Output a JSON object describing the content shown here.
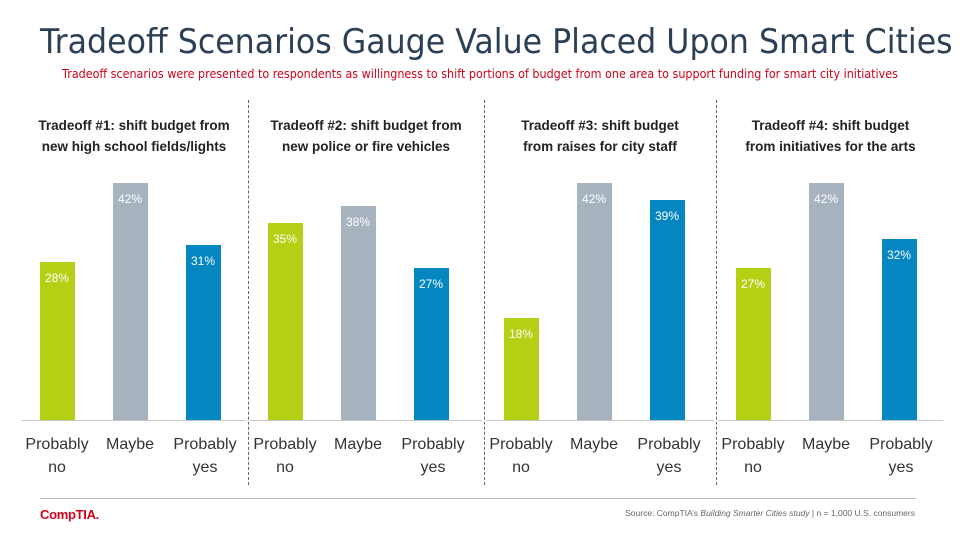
{
  "title": "Tradeoff Scenarios Gauge Value Placed Upon Smart Cities",
  "subtitle": "Tradeoff scenarios were presented to respondents as willingness to shift portions of budget from one area to support funding for smart city initiatives",
  "colors": {
    "probably_no": "#b5cf14",
    "maybe": "#a7b4c0",
    "probably_yes": "#0487c1",
    "title": "#2b3f55",
    "accent": "#d0021b"
  },
  "chart_data": [
    {
      "type": "bar",
      "title": "Tradeoff #1: shift budget from\nnew high school fields/lights",
      "categories": [
        "Probably\nno",
        "Maybe",
        "Probably\nyes"
      ],
      "values": [
        28,
        42,
        31
      ],
      "labels": [
        "28%",
        "42%",
        "31%"
      ],
      "ylim": [
        0,
        42
      ]
    },
    {
      "type": "bar",
      "title": "Tradeoff #2: shift budget from\nnew police or fire vehicles",
      "categories": [
        "Probably\nno",
        "Maybe",
        "Probably\nyes"
      ],
      "values": [
        35,
        38,
        27
      ],
      "labels": [
        "35%",
        "38%",
        "27%"
      ],
      "ylim": [
        0,
        42
      ]
    },
    {
      "type": "bar",
      "title": "Tradeoff #3: shift budget\nfrom raises for city staff",
      "categories": [
        "Probably\nno",
        "Maybe",
        "Probably\nyes"
      ],
      "values": [
        18,
        42,
        39
      ],
      "labels": [
        "18%",
        "42%",
        "39%"
      ],
      "ylim": [
        0,
        42
      ]
    },
    {
      "type": "bar",
      "title": "Tradeoff #4: shift budget\nfrom initiatives for the arts",
      "categories": [
        "Probably\nno",
        "Maybe",
        "Probably\nyes"
      ],
      "values": [
        27,
        42,
        32
      ],
      "labels": [
        "27%",
        "42%",
        "32%"
      ],
      "ylim": [
        0,
        42
      ]
    }
  ],
  "footer": {
    "logo": "CompTIA.",
    "source_prefix": "Source: CompTIA’s ",
    "source_study": "Building Smarter Cities study",
    "source_suffix": " | n = 1,000 U.S. consumers"
  }
}
